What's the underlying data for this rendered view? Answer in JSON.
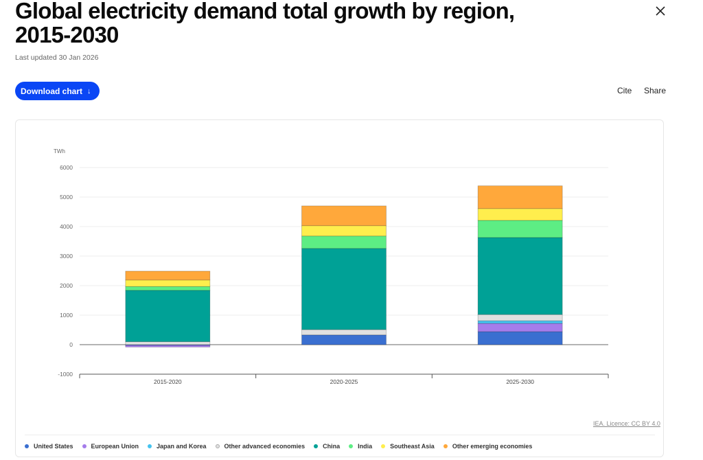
{
  "header": {
    "title": "Global electricity demand total growth by region, 2015-2030",
    "updated": "Last updated 30 Jan 2026",
    "download_label": "Download chart",
    "download_icon": "arrow-down",
    "cite_label": "Cite",
    "share_label": "Share",
    "close_icon": "close-x"
  },
  "licence": "IEA. Licence: CC BY 4.0",
  "chart_data": {
    "type": "bar",
    "stacked": true,
    "title": "Global electricity demand total growth by region, 2015-2030",
    "ylabel": "TWh",
    "xlabel": "",
    "ylim": [
      -1000,
      6000
    ],
    "yticks": [
      -1000,
      0,
      1000,
      2000,
      3000,
      4000,
      5000,
      6000
    ],
    "grid": true,
    "legend_position": "bottom",
    "categories": [
      "2015-2020",
      "2020-2025",
      "2025-2030"
    ],
    "series": [
      {
        "name": "United States",
        "color": "#3a6fd0",
        "values": [
          -20,
          330,
          440
        ]
      },
      {
        "name": "European Union",
        "color": "#a57ceb",
        "values": [
          -60,
          0,
          280
        ]
      },
      {
        "name": "Japan and Korea",
        "color": "#45c3ef",
        "values": [
          0,
          0,
          90
        ]
      },
      {
        "name": "Other advanced economies",
        "color": "#e0e0e0",
        "values": [
          100,
          180,
          210
        ]
      },
      {
        "name": "China",
        "color": "#00a196",
        "values": [
          1740,
          2750,
          2610
        ]
      },
      {
        "name": "India",
        "color": "#5ded84",
        "values": [
          130,
          420,
          580
        ]
      },
      {
        "name": "Southeast Asia",
        "color": "#ffee4d",
        "values": [
          220,
          350,
          400
        ]
      },
      {
        "name": "Other emerging economies",
        "color": "#ffa83b",
        "values": [
          300,
          670,
          770
        ]
      }
    ]
  }
}
